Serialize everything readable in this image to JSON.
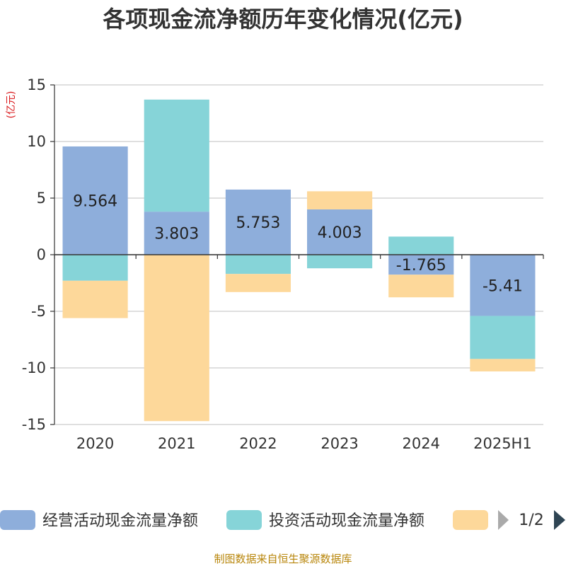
{
  "chart_data": {
    "type": "bar",
    "stacked": true,
    "title": "各项现金流净额历年变化情况(亿元)",
    "ylabel": "(亿元)",
    "categories": [
      "2020",
      "2021",
      "2022",
      "2023",
      "2024",
      "2025H1"
    ],
    "ylim": [
      -15,
      15
    ],
    "yticks": [
      15,
      10,
      5,
      0,
      -5,
      -10,
      -15
    ],
    "grid": true,
    "series": [
      {
        "name": "经营活动现金流量净额",
        "color": "#8eaedb",
        "values": [
          9.564,
          3.803,
          5.753,
          4.003,
          -1.765,
          -5.41
        ],
        "show_labels": true
      },
      {
        "name": "投资活动现金流量净额",
        "color": "#86d4d8",
        "values": [
          -2.3,
          9.9,
          -1.7,
          -1.2,
          1.6,
          -3.8
        ],
        "show_labels": false
      },
      {
        "name": "",
        "color": "#fdd89a",
        "values": [
          -3.3,
          -14.7,
          -1.6,
          1.6,
          -2.0,
          -1.1
        ],
        "show_labels": false
      }
    ],
    "legend": {
      "position": "bottom",
      "page": "1/2"
    },
    "source": "制图数据来自恒生聚源数据库"
  }
}
